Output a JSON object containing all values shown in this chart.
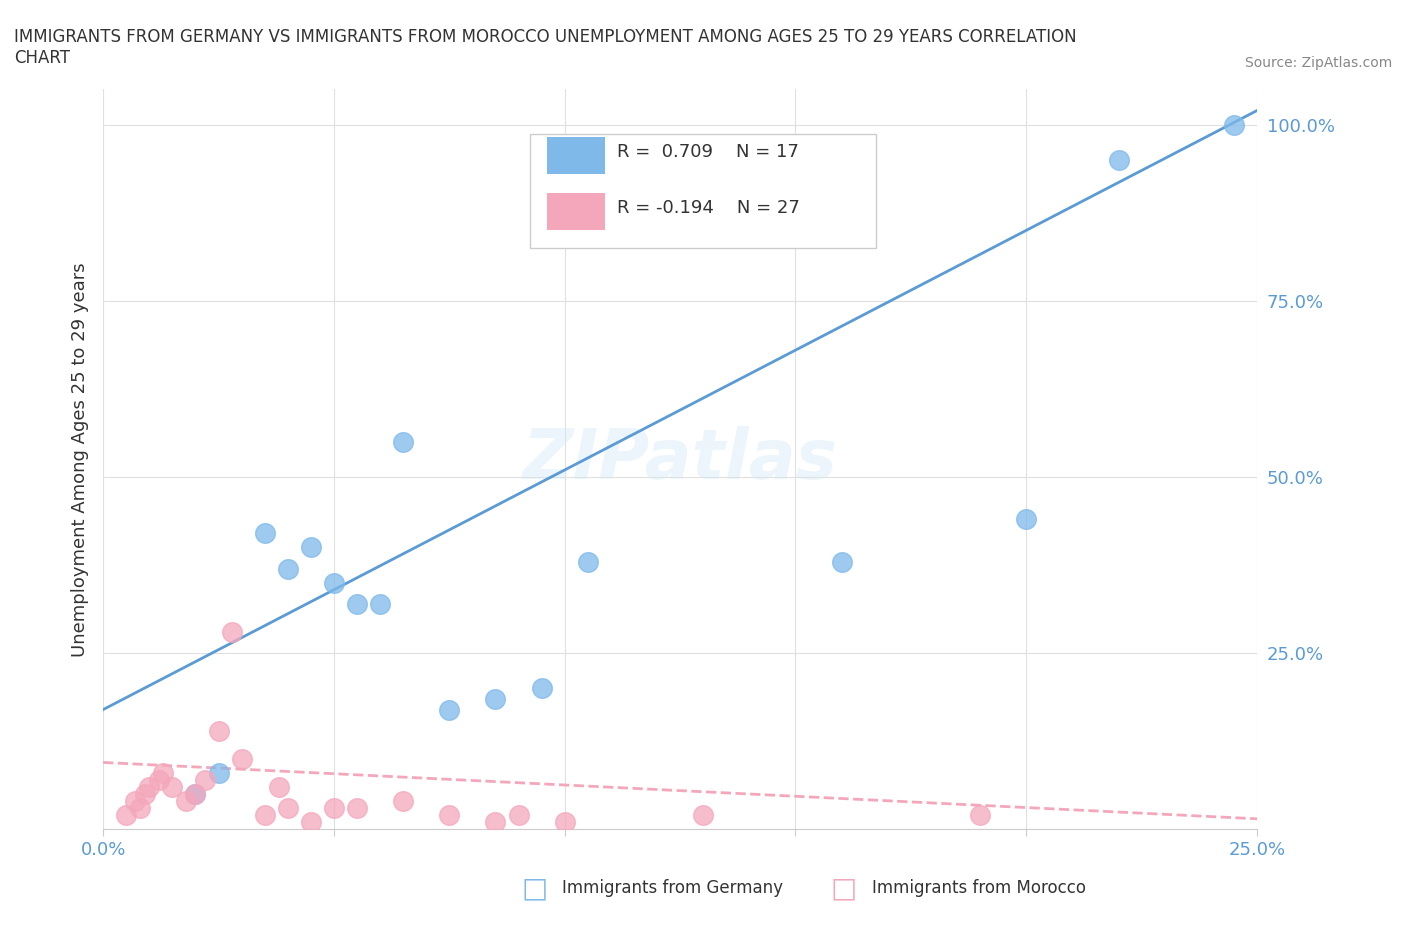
{
  "title": "IMMIGRANTS FROM GERMANY VS IMMIGRANTS FROM MOROCCO UNEMPLOYMENT AMONG AGES 25 TO 29 YEARS CORRELATION\nCHART",
  "source": "Source: ZipAtlas.com",
  "xlabel": "",
  "ylabel": "Unemployment Among Ages 25 to 29 years",
  "xlim": [
    0.0,
    0.25
  ],
  "ylim": [
    0.0,
    1.05
  ],
  "x_ticks": [
    0.0,
    0.05,
    0.1,
    0.15,
    0.2,
    0.25
  ],
  "x_tick_labels": [
    "0.0%",
    "",
    "",
    "",
    "",
    "25.0%"
  ],
  "y_ticks": [
    0.0,
    0.25,
    0.5,
    0.75,
    1.0
  ],
  "y_tick_labels": [
    "",
    "25.0%",
    "50.0%",
    "75.0%",
    "100.0%"
  ],
  "germany_scatter_x": [
    0.02,
    0.025,
    0.035,
    0.04,
    0.045,
    0.05,
    0.055,
    0.06,
    0.065,
    0.075,
    0.085,
    0.095,
    0.105,
    0.16,
    0.2,
    0.22,
    0.245
  ],
  "germany_scatter_y": [
    0.05,
    0.08,
    0.42,
    0.37,
    0.4,
    0.35,
    0.32,
    0.32,
    0.55,
    0.17,
    0.185,
    0.2,
    0.38,
    0.38,
    0.44,
    0.95,
    1.0
  ],
  "morocco_scatter_x": [
    0.005,
    0.007,
    0.008,
    0.009,
    0.01,
    0.012,
    0.013,
    0.015,
    0.018,
    0.02,
    0.022,
    0.025,
    0.028,
    0.03,
    0.035,
    0.038,
    0.04,
    0.045,
    0.05,
    0.055,
    0.065,
    0.075,
    0.085,
    0.09,
    0.1,
    0.13,
    0.19
  ],
  "morocco_scatter_y": [
    0.02,
    0.04,
    0.03,
    0.05,
    0.06,
    0.07,
    0.08,
    0.06,
    0.04,
    0.05,
    0.07,
    0.14,
    0.28,
    0.1,
    0.02,
    0.06,
    0.03,
    0.01,
    0.03,
    0.03,
    0.04,
    0.02,
    0.01,
    0.02,
    0.01,
    0.02,
    0.02
  ],
  "germany_color": "#7eb9ea",
  "morocco_color": "#f4a7bb",
  "germany_line_color": "#5b9bd5",
  "morocco_line_color": "#f4a7bb",
  "watermark": "ZIPatlas",
  "R_germany": 0.709,
  "N_germany": 17,
  "R_morocco": -0.194,
  "N_morocco": 27,
  "background_color": "#ffffff",
  "grid_color": "#e0e0e0"
}
